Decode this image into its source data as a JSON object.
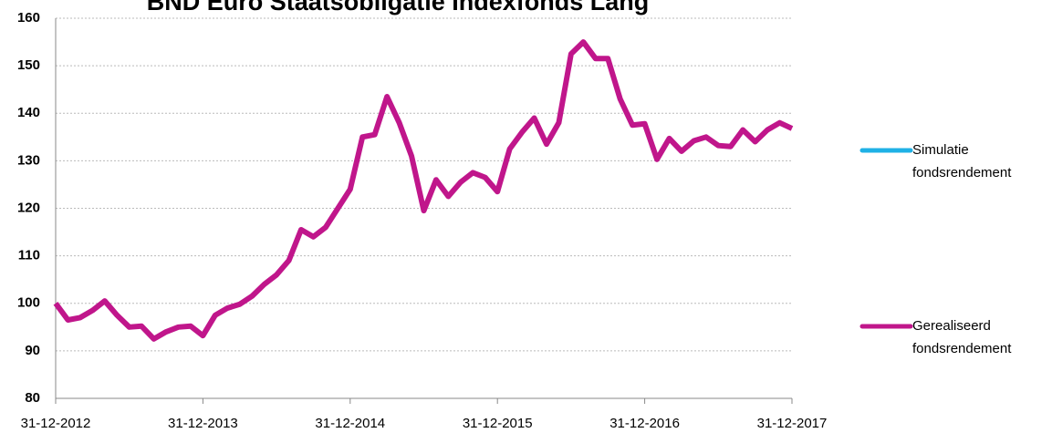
{
  "chart_data": {
    "type": "line",
    "title": "BND Euro Staatsobligatie Indexfonds Lang",
    "categories": [
      "31-12-2012",
      null,
      null,
      null,
      null,
      null,
      null,
      null,
      null,
      null,
      null,
      null,
      "31-12-2013",
      null,
      null,
      null,
      null,
      null,
      null,
      null,
      null,
      null,
      null,
      null,
      "31-12-2014",
      null,
      null,
      null,
      null,
      null,
      null,
      null,
      null,
      null,
      null,
      null,
      "31-12-2015",
      null,
      null,
      null,
      null,
      null,
      null,
      null,
      null,
      null,
      null,
      null,
      "31-12-2016",
      null,
      null,
      null,
      null,
      null,
      null,
      null,
      null,
      null,
      null,
      null,
      "31-12-2017"
    ],
    "series": [
      {
        "name": "Simulatie fondsrendement",
        "color": "#1fb1e6",
        "values": [
          null,
          null,
          null,
          null,
          null,
          null,
          null,
          null,
          null,
          null,
          null,
          null,
          null,
          null,
          null,
          null,
          null,
          null,
          null,
          null,
          null,
          null,
          null,
          null,
          null,
          null,
          null,
          null,
          null,
          null,
          null,
          null,
          null,
          null,
          null,
          null,
          null,
          null,
          null,
          null,
          null,
          null,
          null,
          null,
          null,
          null,
          null,
          null,
          null,
          null,
          null,
          null,
          null,
          null,
          null,
          null,
          null,
          null,
          null,
          null,
          null
        ]
      },
      {
        "name": "Gerealiseerd fondsrendement",
        "color": "#c0168b",
        "values": [
          100,
          96.5,
          97,
          98.5,
          100.5,
          97.5,
          95,
          95.2,
          92.5,
          94,
          95,
          95.2,
          93.2,
          97.5,
          99,
          99.8,
          101.5,
          104,
          106,
          109,
          115.5,
          114,
          116,
          120,
          124,
          135,
          135.5,
          143.5,
          138,
          131,
          119.5,
          126,
          122.5,
          125.5,
          127.5,
          126.5,
          123.5,
          132.5,
          136,
          139,
          133.5,
          138,
          152.5,
          155,
          151.5,
          151.5,
          143,
          137.5,
          137.8,
          130.3,
          134.7,
          132,
          134.2,
          135,
          133.2,
          133,
          136.5,
          134,
          136.5,
          138,
          136.8
        ]
      }
    ],
    "ylim": [
      80,
      160
    ],
    "yticks": [
      80,
      90,
      100,
      110,
      120,
      130,
      140,
      150,
      160
    ],
    "grid": true
  }
}
